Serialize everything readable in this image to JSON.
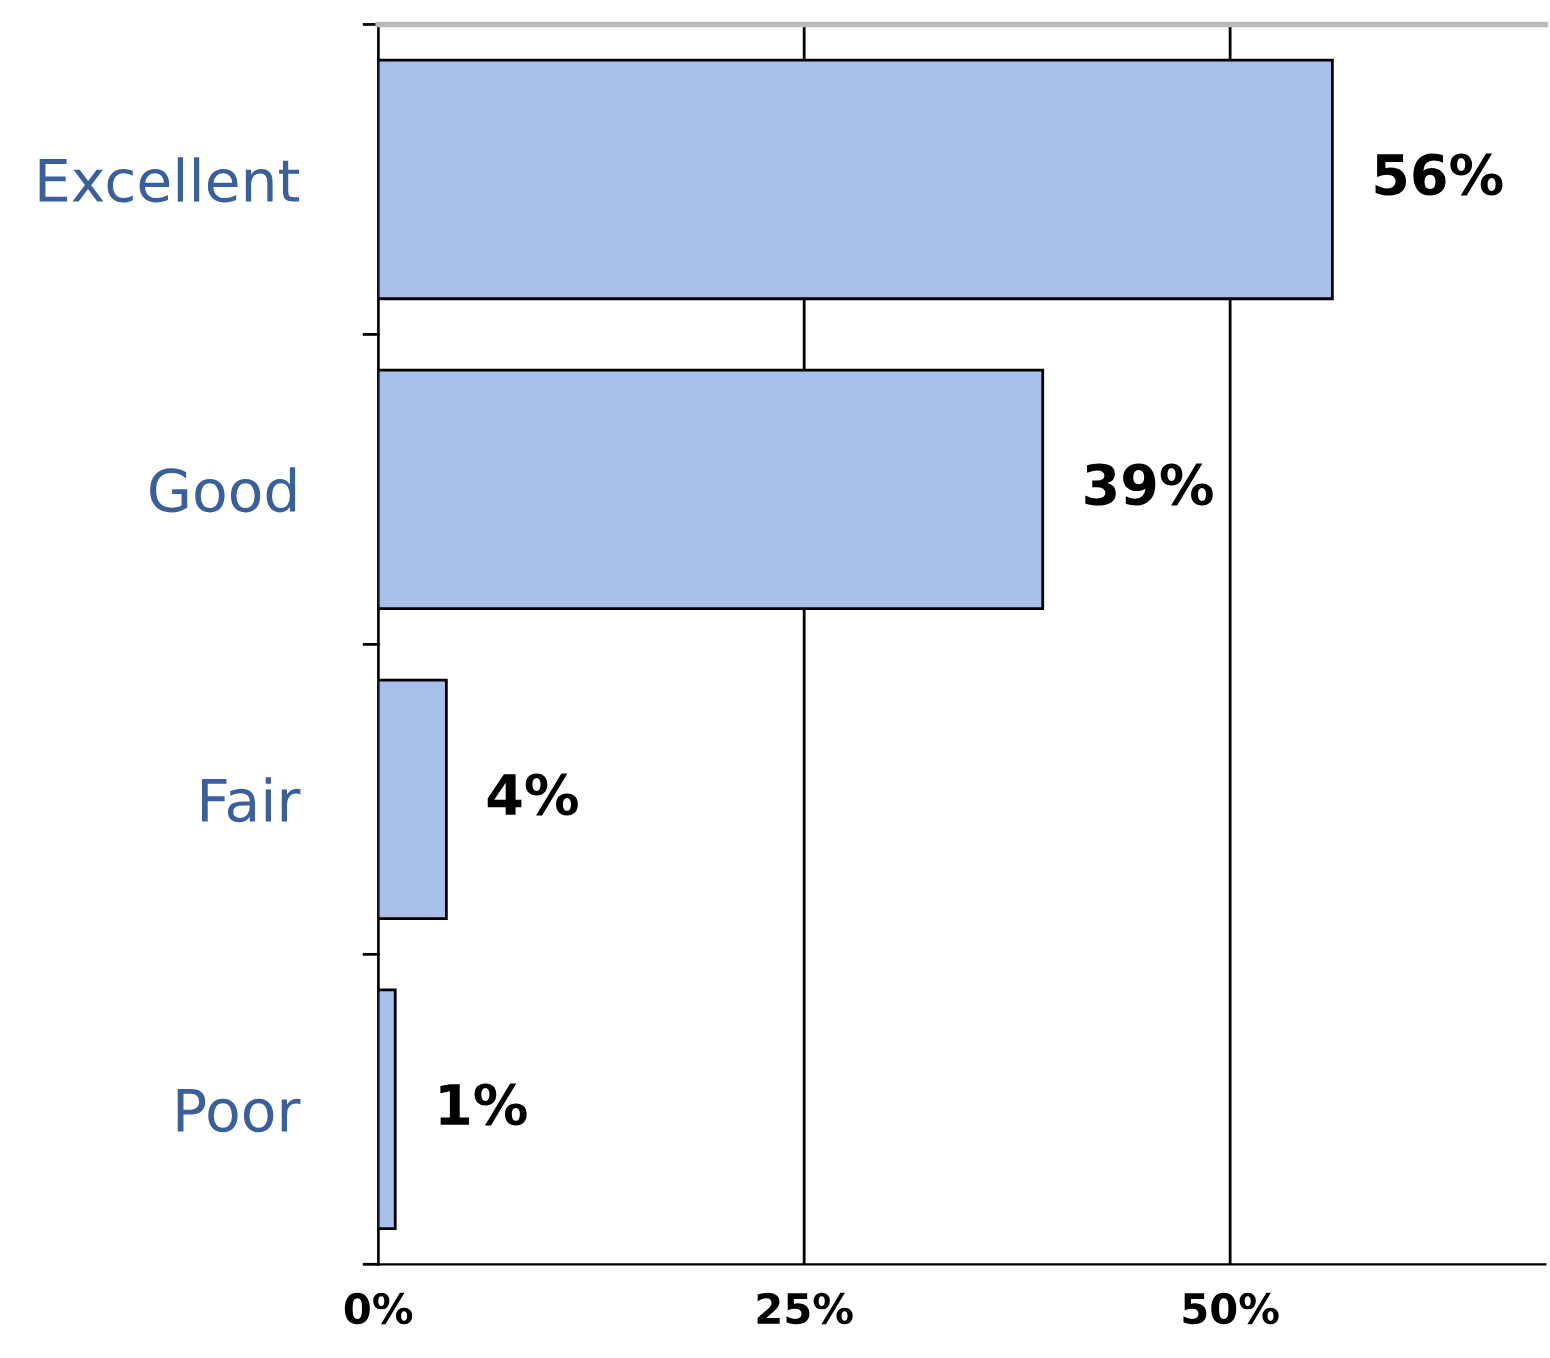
{
  "chart_data": {
    "type": "bar",
    "orientation": "horizontal",
    "categories": [
      "Excellent",
      "Good",
      "Fair",
      "Poor"
    ],
    "values": [
      56,
      39,
      4,
      1
    ],
    "color": "#a9c0ea",
    "value_labels": [
      "56%",
      "39%",
      "4%",
      "1%"
    ],
    "xlim": [
      0,
      68.5
    ],
    "xticks": [
      {
        "value": 0,
        "label": "0%"
      },
      {
        "value": 25,
        "label": "25%"
      },
      {
        "value": 50,
        "label": "50%"
      }
    ],
    "grid": "x",
    "legend": false
  }
}
